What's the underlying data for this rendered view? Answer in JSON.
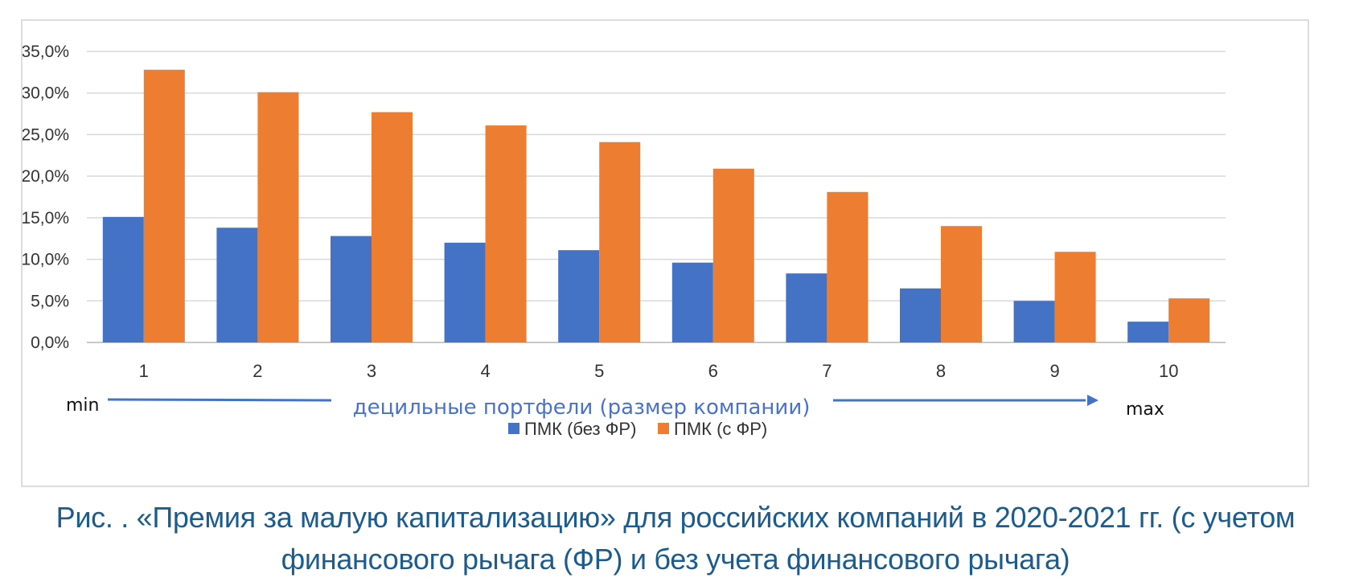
{
  "chart_data": {
    "type": "bar",
    "categories": [
      "1",
      "2",
      "3",
      "4",
      "5",
      "6",
      "7",
      "8",
      "9",
      "10"
    ],
    "series": [
      {
        "name": "ПМК (без ФР)",
        "color": "#4472c4",
        "values": [
          15.1,
          13.8,
          12.8,
          12.0,
          11.1,
          9.6,
          8.3,
          6.5,
          5.0,
          2.5
        ]
      },
      {
        "name": "ПМК (с ФР)",
        "color": "#ed7d31",
        "values": [
          32.8,
          30.1,
          27.7,
          26.1,
          24.1,
          20.9,
          18.1,
          14.0,
          10.9,
          5.3
        ]
      }
    ],
    "ylim": [
      0,
      35
    ],
    "yticks": [
      "0,0%",
      "5,0%",
      "10,0%",
      "15,0%",
      "20,0%",
      "25,0%",
      "30,0%",
      "35,0%"
    ],
    "xlabel": "децильные портфели (размер компании)",
    "x_min_label": "min",
    "x_max_label": "max",
    "grid": true,
    "legend_position": "bottom"
  },
  "caption": {
    "line1": "Рис.   .  «Премия за малую капитализацию» для российских компаний в 2020-2021 гг. (с учетом",
    "line2": "финансового рычага (ФР) и без учета финансового рычага)"
  }
}
